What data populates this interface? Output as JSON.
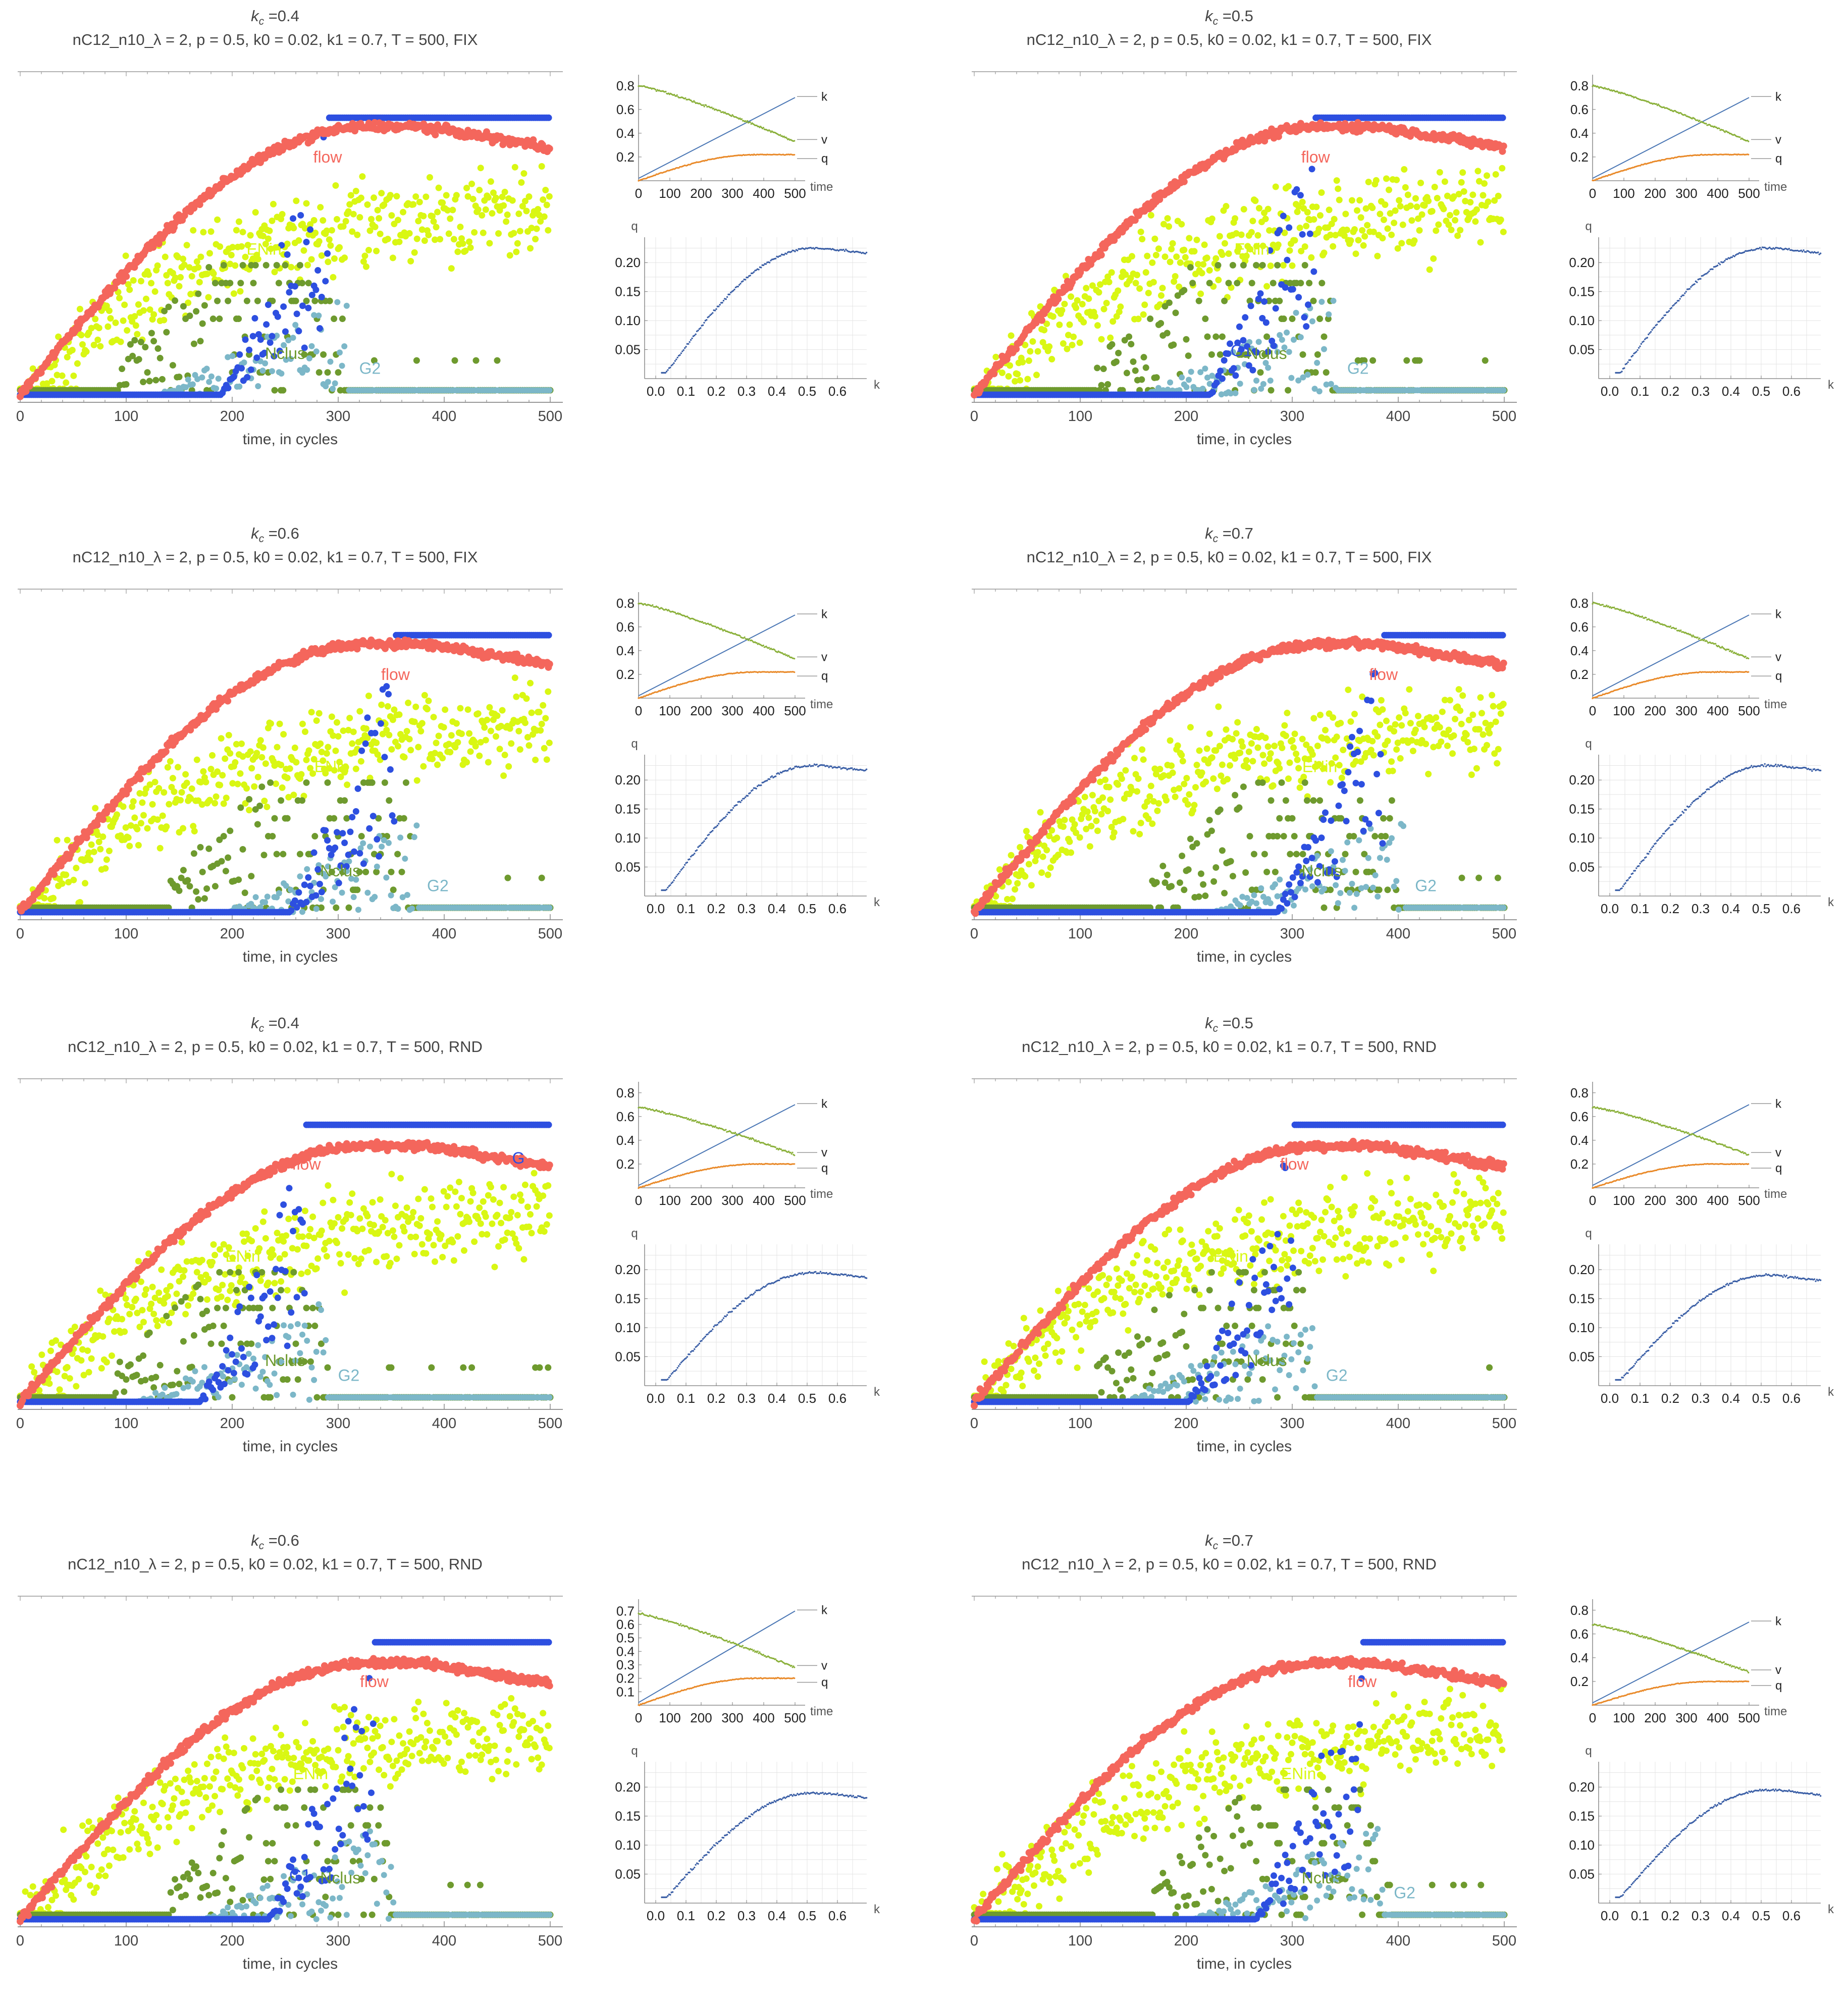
{
  "labels": {
    "x_main": "time, in cycles",
    "kc_prefix": "k",
    "kc_sub": "c",
    "kc_eq": " =",
    "subtitle_fix": "nC12_n10_λ = 2, p = 0.5, k0 = 0.02, k1 = 0.7, T = 500, FIX",
    "subtitle_rnd": "nC12_n10_λ = 2, p = 0.5, k0 = 0.02, k1 = 0.7, T = 500, RND",
    "inset_time": "time",
    "inset_q": "q",
    "inset_k": "k"
  },
  "colors": {
    "flow": "#f4665c",
    "ENin": "#d9f713",
    "Nclus": "#6e9a2e",
    "G1": "#2d4fe0",
    "G2": "#7cb7c8",
    "k_line": "#4a76b4",
    "v_line": "#8ab03a",
    "q_line": "#e98a2a",
    "scatter": "#3b5fa6"
  },
  "chart_data": [
    {
      "type": "scatter",
      "id": "kc04_fix",
      "kc": "0.4",
      "mode": "FIX",
      "xlim": [
        0,
        500
      ],
      "xticks": [
        0,
        100,
        200,
        300,
        400,
        500
      ],
      "series": [
        {
          "name": "flow"
        },
        {
          "name": "ENin"
        },
        {
          "name": "Nclus"
        },
        {
          "name": "G1"
        },
        {
          "name": "G2"
        }
      ],
      "label_text": [
        "flow",
        "ENin",
        "Nclus",
        "G2"
      ],
      "insets": {
        "top": {
          "yticks": [
            0.2,
            0.4,
            0.6,
            0.8
          ],
          "xticks": [
            0,
            100,
            200,
            300,
            400,
            500
          ],
          "end_labels": [
            "k",
            "v",
            "q"
          ],
          "v_end": 0.33,
          "q_end": 0.22
        },
        "bottom": {
          "yticks": [
            0.05,
            0.1,
            0.15,
            0.2
          ],
          "xticks": [
            0.0,
            0.1,
            0.2,
            0.3,
            0.4,
            0.5,
            0.6
          ],
          "q_max": 0.225
        }
      }
    },
    {
      "type": "scatter",
      "id": "kc05_fix",
      "kc": "0.5",
      "mode": "FIX",
      "xlim": [
        0,
        500
      ],
      "xticks": [
        0,
        100,
        200,
        300,
        400,
        500
      ],
      "series": [
        {
          "name": "flow"
        },
        {
          "name": "ENin"
        },
        {
          "name": "Nclus"
        },
        {
          "name": "G1"
        },
        {
          "name": "G2"
        }
      ],
      "label_text": [
        "flow",
        "ENin",
        "Nclus",
        "G1",
        "G2"
      ],
      "insets": {
        "top": {
          "yticks": [
            0.2,
            0.4,
            0.6,
            0.8
          ],
          "xticks": [
            0,
            100,
            200,
            300,
            400,
            500
          ],
          "end_labels": [
            "k",
            "v",
            "q"
          ],
          "v_end": 0.33,
          "q_end": 0.22
        },
        "bottom": {
          "yticks": [
            0.05,
            0.1,
            0.15,
            0.2
          ],
          "xticks": [
            0.0,
            0.1,
            0.2,
            0.3,
            0.4,
            0.5,
            0.6
          ],
          "q_max": 0.225
        }
      }
    },
    {
      "type": "scatter",
      "id": "kc06_fix",
      "kc": "0.6",
      "mode": "FIX",
      "xlim": [
        0,
        500
      ],
      "xticks": [
        0,
        100,
        200,
        300,
        400,
        500
      ],
      "series": [
        {
          "name": "flow"
        },
        {
          "name": "ENin"
        },
        {
          "name": "Nclus"
        },
        {
          "name": "G1"
        },
        {
          "name": "G2"
        }
      ],
      "label_text": [
        "flow",
        "ENin",
        "Nclus",
        "G2"
      ],
      "insets": {
        "top": {
          "yticks": [
            0.2,
            0.4,
            0.6,
            0.8
          ],
          "xticks": [
            0,
            100,
            200,
            300,
            400,
            500
          ],
          "end_labels": [
            "k",
            "v",
            "q"
          ],
          "v_end": 0.33,
          "q_end": 0.22
        },
        "bottom": {
          "yticks": [
            0.05,
            0.1,
            0.15,
            0.2
          ],
          "xticks": [
            0.0,
            0.1,
            0.2,
            0.3,
            0.4,
            0.5,
            0.6
          ],
          "q_max": 0.225
        }
      }
    },
    {
      "type": "scatter",
      "id": "kc07_fix",
      "kc": "0.7",
      "mode": "FIX",
      "xlim": [
        0,
        500
      ],
      "xticks": [
        0,
        100,
        200,
        300,
        400,
        500
      ],
      "series": [
        {
          "name": "flow"
        },
        {
          "name": "ENin"
        },
        {
          "name": "Nclus"
        },
        {
          "name": "G1"
        },
        {
          "name": "G2"
        }
      ],
      "label_text": [
        "flow",
        "ENin",
        "Nclus",
        "G2"
      ],
      "insets": {
        "top": {
          "yticks": [
            0.2,
            0.4,
            0.6,
            0.8
          ],
          "xticks": [
            0,
            100,
            200,
            300,
            400,
            500
          ],
          "end_labels": [
            "k",
            "v",
            "q"
          ],
          "v_end": 0.33,
          "q_end": 0.22
        },
        "bottom": {
          "yticks": [
            0.05,
            0.1,
            0.15,
            0.2
          ],
          "xticks": [
            0.0,
            0.1,
            0.2,
            0.3,
            0.4,
            0.5,
            0.6
          ],
          "q_max": 0.225
        }
      }
    },
    {
      "type": "scatter",
      "id": "kc04_rnd",
      "kc": "0.4",
      "mode": "RND",
      "xlim": [
        0,
        500
      ],
      "xticks": [
        0,
        100,
        200,
        300,
        400,
        500
      ],
      "series": [
        {
          "name": "flow"
        },
        {
          "name": "ENin"
        },
        {
          "name": "Nclus"
        },
        {
          "name": "G1"
        },
        {
          "name": "G2"
        }
      ],
      "label_text": [
        "flow",
        "ENin",
        "Nclus",
        "G2",
        "G"
      ],
      "insets": {
        "top": {
          "yticks": [
            0.2,
            0.4,
            0.6,
            0.8
          ],
          "xticks": [
            0,
            100,
            200,
            300,
            400,
            500
          ],
          "end_labels": [
            "k",
            "v",
            "q"
          ],
          "v_end": 0.28,
          "q_end": 0.2
        },
        "bottom": {
          "yticks": [
            0.05,
            0.1,
            0.15,
            0.2
          ],
          "xticks": [
            0.0,
            0.1,
            0.2,
            0.3,
            0.4,
            0.5,
            0.6
          ],
          "q_max": 0.195
        }
      }
    },
    {
      "type": "scatter",
      "id": "kc05_rnd",
      "kc": "0.5",
      "mode": "RND",
      "xlim": [
        0,
        500
      ],
      "xticks": [
        0,
        100,
        200,
        300,
        400,
        500
      ],
      "series": [
        {
          "name": "flow"
        },
        {
          "name": "ENin"
        },
        {
          "name": "Nclus"
        },
        {
          "name": "G1"
        },
        {
          "name": "G2"
        }
      ],
      "label_text": [
        "flow",
        "ENin",
        "Nclus",
        "G2"
      ],
      "insets": {
        "top": {
          "yticks": [
            0.2,
            0.4,
            0.6,
            0.8
          ],
          "xticks": [
            0,
            100,
            200,
            300,
            400,
            500
          ],
          "end_labels": [
            "k",
            "v",
            "q"
          ],
          "v_end": 0.28,
          "q_end": 0.2
        },
        "bottom": {
          "yticks": [
            0.05,
            0.1,
            0.15,
            0.2
          ],
          "xticks": [
            0.0,
            0.1,
            0.2,
            0.3,
            0.4,
            0.5,
            0.6
          ],
          "q_max": 0.19
        }
      }
    },
    {
      "type": "scatter",
      "id": "kc06_rnd",
      "kc": "0.6",
      "mode": "RND",
      "xlim": [
        0,
        500
      ],
      "xticks": [
        0,
        100,
        200,
        300,
        400,
        500
      ],
      "series": [
        {
          "name": "flow"
        },
        {
          "name": "ENin"
        },
        {
          "name": "Nclus"
        },
        {
          "name": "G1"
        },
        {
          "name": "G2"
        }
      ],
      "label_text": [
        "flow",
        "ENin",
        "Nclus",
        "G1"
      ],
      "insets": {
        "top": {
          "yticks": [
            0.1,
            0.2,
            0.3,
            0.4,
            0.5,
            0.6,
            0.7
          ],
          "xticks": [
            0,
            100,
            200,
            300,
            400,
            500
          ],
          "end_labels": [
            "k",
            "v",
            "q"
          ],
          "v_end": 0.28,
          "q_end": 0.2
        },
        "bottom": {
          "yticks": [
            0.05,
            0.1,
            0.15,
            0.2
          ],
          "xticks": [
            0.0,
            0.1,
            0.2,
            0.3,
            0.4,
            0.5,
            0.6
          ],
          "q_max": 0.19
        }
      }
    },
    {
      "type": "scatter",
      "id": "kc07_rnd",
      "kc": "0.7",
      "mode": "RND",
      "xlim": [
        0,
        500
      ],
      "xticks": [
        0,
        100,
        200,
        300,
        400,
        500
      ],
      "series": [
        {
          "name": "flow"
        },
        {
          "name": "ENin"
        },
        {
          "name": "Nclus"
        },
        {
          "name": "G1"
        },
        {
          "name": "G2"
        }
      ],
      "label_text": [
        "flow",
        "ENin",
        "Nclus",
        "G2"
      ],
      "insets": {
        "top": {
          "yticks": [
            0.2,
            0.4,
            0.6,
            0.8
          ],
          "xticks": [
            0,
            100,
            200,
            300,
            400,
            500
          ],
          "end_labels": [
            "k",
            "v",
            "q"
          ],
          "v_end": 0.28,
          "q_end": 0.2
        },
        "bottom": {
          "yticks": [
            0.05,
            0.1,
            0.15,
            0.2
          ],
          "xticks": [
            0.0,
            0.1,
            0.2,
            0.3,
            0.4,
            0.5,
            0.6
          ],
          "q_max": 0.195
        }
      }
    }
  ]
}
